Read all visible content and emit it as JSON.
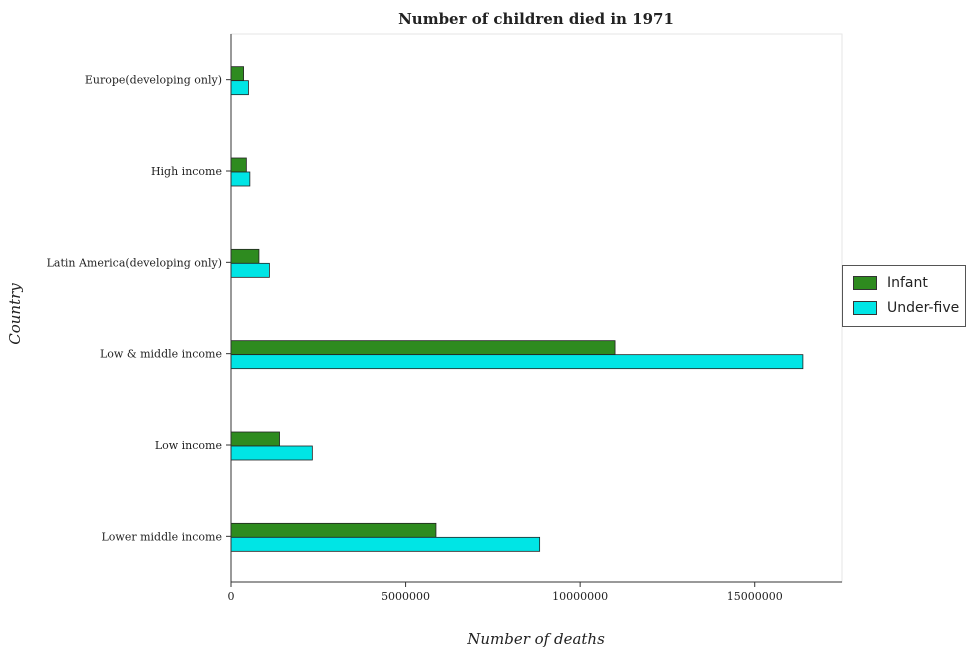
{
  "chart_data": {
    "type": "bar",
    "orientation": "horizontal",
    "title": "Number of children died in 1971",
    "xlabel": "Number of deaths",
    "ylabel": "Country",
    "categories": [
      "Europe(developing only)",
      "High income",
      "Latin America(developing only)",
      "Low & middle income",
      "Low income",
      "Lower middle income"
    ],
    "series": [
      {
        "name": "Infant",
        "color": "#2e8b1f",
        "values": [
          360000,
          440000,
          800000,
          11000000,
          1390000,
          5870000
        ]
      },
      {
        "name": "Under-five",
        "color": "#00e5e5",
        "values": [
          500000,
          540000,
          1100000,
          16380000,
          2330000,
          8840000
        ]
      }
    ],
    "xlim": [
      0,
      17500000
    ],
    "xticks": [
      0,
      5000000,
      10000000,
      15000000
    ],
    "xtick_labels": [
      "0",
      "5000000",
      "10000000",
      "15000000"
    ],
    "grid": false,
    "legend_position": "right"
  }
}
